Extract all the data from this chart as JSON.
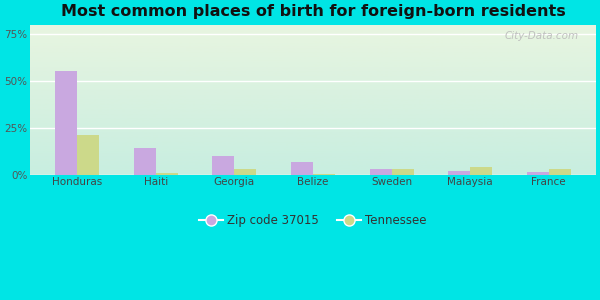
{
  "title": "Most common places of birth for foreign-born residents",
  "categories": [
    "Honduras",
    "Haiti",
    "Georgia",
    "Belize",
    "Sweden",
    "Malaysia",
    "France"
  ],
  "zip_values": [
    55.0,
    14.0,
    10.0,
    7.0,
    3.0,
    2.0,
    1.5
  ],
  "tn_values": [
    21.0,
    1.0,
    3.0,
    0.5,
    3.0,
    4.0,
    3.0
  ],
  "zip_color": "#c9a8e0",
  "tn_color": "#ccd98a",
  "background_outer": "#00e5e5",
  "background_inner_top": "#e8f5e0",
  "background_inner_bot": "#d0f0e8",
  "yticks": [
    0,
    25,
    50,
    75
  ],
  "ytick_labels": [
    "0%",
    "25%",
    "50%",
    "75%"
  ],
  "ylim": [
    0,
    80
  ],
  "legend_zip": "Zip code 37015",
  "legend_tn": "Tennessee",
  "title_fontsize": 11.5,
  "tick_fontsize": 7.5,
  "watermark": "City-Data.com"
}
